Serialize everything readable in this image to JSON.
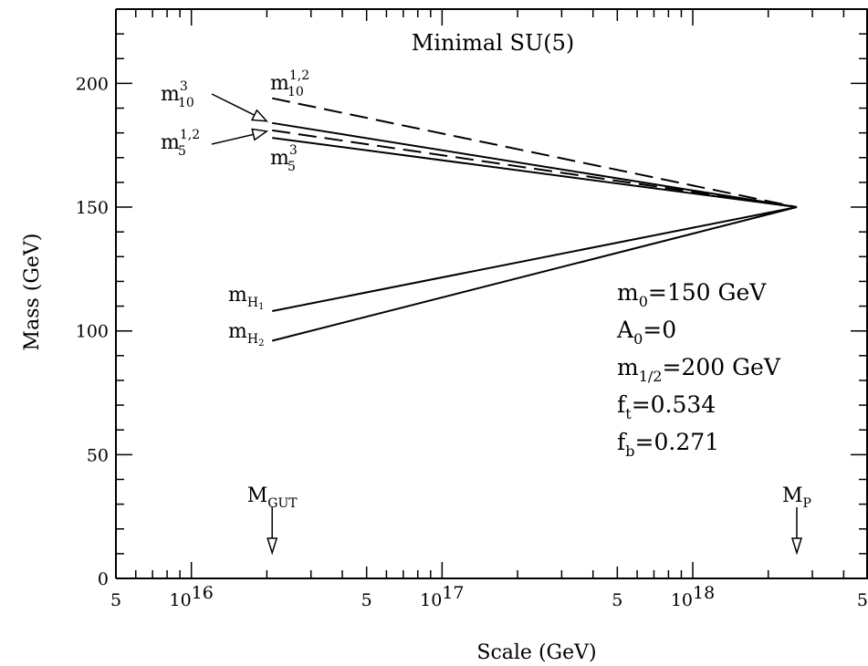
{
  "chart_data": {
    "type": "line",
    "title": "Minimal SU(5)",
    "xlabel": "Scale (GeV)",
    "ylabel": "Mass (GeV)",
    "x_scale": "log",
    "xlim": [
      5000000000000000.0,
      5e+18
    ],
    "ylim": [
      0,
      230
    ],
    "x_tick_labels": [
      {
        "x": 5000000000000000.0,
        "label": "5"
      },
      {
        "x": 1e+16,
        "label": "10",
        "exp": "16"
      },
      {
        "x": 5e+16,
        "label": "5"
      },
      {
        "x": 1e+17,
        "label": "10",
        "exp": "17"
      },
      {
        "x": 5e+17,
        "label": "5"
      },
      {
        "x": 1e+18,
        "label": "10",
        "exp": "18"
      },
      {
        "x": 5e+18,
        "label": "5"
      }
    ],
    "y_ticks": [
      0,
      50,
      100,
      150,
      200
    ],
    "series": [
      {
        "name": "m_10^{1,2}",
        "style": "dashed",
        "x": [
          2.1e+16,
          2.6e+18
        ],
        "y": [
          194,
          150
        ]
      },
      {
        "name": "m_10^3",
        "style": "solid",
        "x": [
          2.1e+16,
          2.6e+18
        ],
        "y": [
          184,
          150
        ]
      },
      {
        "name": "m_5^{1,2}",
        "style": "dashed",
        "x": [
          2.1e+16,
          2.6e+18
        ],
        "y": [
          181,
          150
        ]
      },
      {
        "name": "m_5^3",
        "style": "solid",
        "x": [
          2.1e+16,
          2.6e+18
        ],
        "y": [
          178,
          150
        ]
      },
      {
        "name": "m_H1",
        "style": "solid",
        "x": [
          2.1e+16,
          2.6e+18
        ],
        "y": [
          108,
          150
        ]
      },
      {
        "name": "m_H2",
        "style": "solid",
        "x": [
          2.1e+16,
          2.6e+18
        ],
        "y": [
          96,
          150
        ]
      }
    ],
    "curve_labels": {
      "m10_12": {
        "base": "m",
        "sub": "10",
        "sup": "1,2"
      },
      "m10_3": {
        "base": "m",
        "sub": "10",
        "sup": "3"
      },
      "m5_12": {
        "base": "m",
        "sub": "5",
        "sup": "1,2"
      },
      "m5_3": {
        "base": "m",
        "sub": "5",
        "sup": "3"
      },
      "mH1": {
        "base": "m",
        "sub": "H",
        "subsub": "1"
      },
      "mH2": {
        "base": "m",
        "sub": "H",
        "subsub": "2"
      }
    },
    "markers": [
      {
        "base": "M",
        "sub": "GUT",
        "x": 2.1e+16
      },
      {
        "base": "M",
        "sub": "P",
        "x": 2.6e+18
      }
    ],
    "parameters": [
      {
        "base": "m",
        "sub": "0",
        "rest": "=150 GeV"
      },
      {
        "base": "A",
        "sub": "0",
        "rest": "=0"
      },
      {
        "base": "m",
        "sub": "1/2",
        "rest": "=200 GeV"
      },
      {
        "base": "f",
        "sub": "t",
        "rest": "=0.534"
      },
      {
        "base": "f",
        "sub": "b",
        "rest": "=0.271"
      }
    ]
  }
}
